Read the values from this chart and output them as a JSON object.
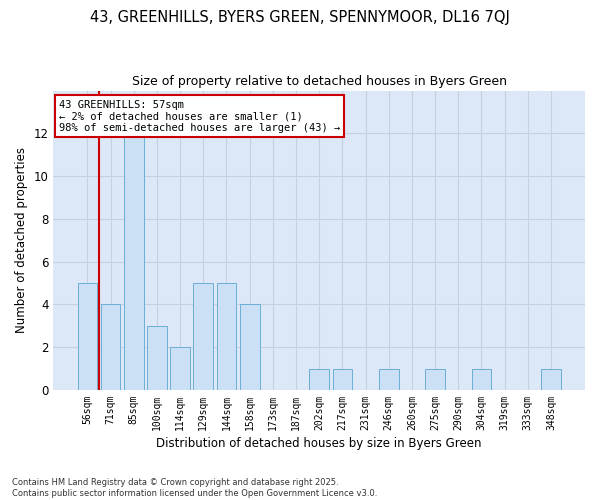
{
  "title1": "43, GREENHILLS, BYERS GREEN, SPENNYMOOR, DL16 7QJ",
  "title2": "Size of property relative to detached houses in Byers Green",
  "xlabel": "Distribution of detached houses by size in Byers Green",
  "ylabel": "Number of detached properties",
  "categories": [
    "56sqm",
    "71sqm",
    "85sqm",
    "100sqm",
    "114sqm",
    "129sqm",
    "144sqm",
    "158sqm",
    "173sqm",
    "187sqm",
    "202sqm",
    "217sqm",
    "231sqm",
    "246sqm",
    "260sqm",
    "275sqm",
    "290sqm",
    "304sqm",
    "319sqm",
    "333sqm",
    "348sqm"
  ],
  "values": [
    5,
    4,
    12,
    3,
    2,
    5,
    5,
    4,
    0,
    0,
    1,
    1,
    0,
    1,
    0,
    1,
    0,
    1,
    0,
    0,
    1
  ],
  "bar_color": "#cce0f5",
  "bar_edge_color": "#6baed6",
  "annotation_text": "43 GREENHILLS: 57sqm\n← 2% of detached houses are smaller (1)\n98% of semi-detached houses are larger (43) →",
  "annotation_box_color": "#ffffff",
  "annotation_box_edge": "#cc0000",
  "ylim": [
    0,
    14
  ],
  "yticks": [
    0,
    2,
    4,
    6,
    8,
    10,
    12
  ],
  "grid_color": "#c8d0e0",
  "bg_color": "#dce8f8",
  "footer": "Contains HM Land Registry data © Crown copyright and database right 2025.\nContains public sector information licensed under the Open Government Licence v3.0.",
  "red_line_x": 0.5
}
